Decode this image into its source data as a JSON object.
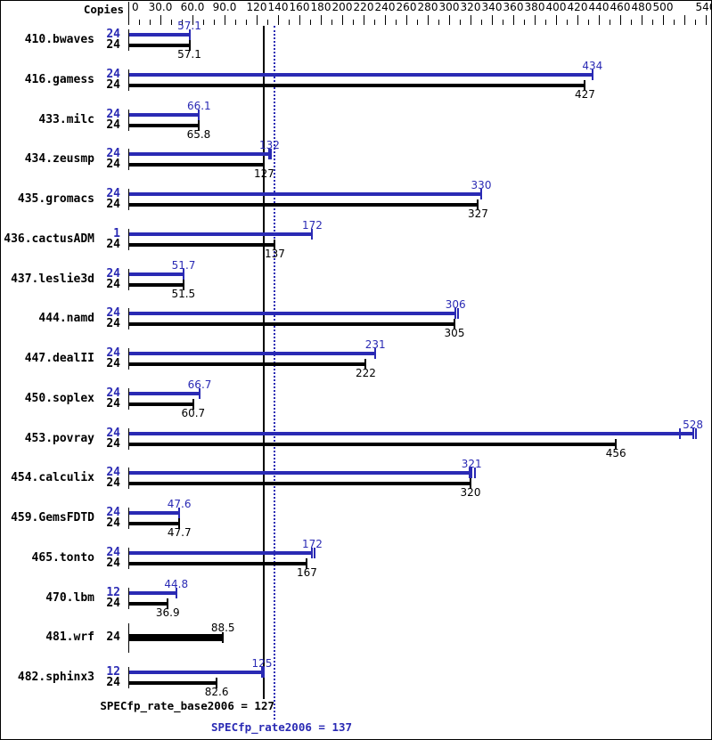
{
  "colors": {
    "peak_blue": "#2a2ab4",
    "base_black": "#000000"
  },
  "chart_data": {
    "type": "bar",
    "orientation": "horizontal",
    "axis": {
      "title": "Copies",
      "min": 0,
      "max": 540,
      "minor_step": 10,
      "labels": [
        {
          "v": 0,
          "t": "0"
        },
        {
          "v": 30,
          "t": "30.0"
        },
        {
          "v": 60,
          "t": "60.0"
        },
        {
          "v": 90,
          "t": "90.0"
        },
        {
          "v": 120,
          "t": "120"
        },
        {
          "v": 140,
          "t": "140"
        },
        {
          "v": 160,
          "t": "160"
        },
        {
          "v": 180,
          "t": "180"
        },
        {
          "v": 200,
          "t": "200"
        },
        {
          "v": 220,
          "t": "220"
        },
        {
          "v": 240,
          "t": "240"
        },
        {
          "v": 260,
          "t": "260"
        },
        {
          "v": 280,
          "t": "280"
        },
        {
          "v": 300,
          "t": "300"
        },
        {
          "v": 320,
          "t": "320"
        },
        {
          "v": 340,
          "t": "340"
        },
        {
          "v": 360,
          "t": "360"
        },
        {
          "v": 380,
          "t": "380"
        },
        {
          "v": 400,
          "t": "400"
        },
        {
          "v": 420,
          "t": "420"
        },
        {
          "v": 440,
          "t": "440"
        },
        {
          "v": 460,
          "t": "460"
        },
        {
          "v": 480,
          "t": "480"
        },
        {
          "v": 500,
          "t": "500"
        },
        {
          "v": 540,
          "t": "540"
        }
      ]
    },
    "reference_lines": [
      {
        "label": "SPECfp_rate_base2006 = 127",
        "value": 127,
        "style": "solid",
        "color": "#000000"
      },
      {
        "label": "SPECfp_rate2006 = 137",
        "value": 137,
        "style": "dotted",
        "color": "#2a2ab4"
      }
    ],
    "benchmarks": [
      {
        "name": "410.bwaves",
        "bars": [
          {
            "series": "peak",
            "copies": "24",
            "value": 57.1,
            "label": "57.1"
          },
          {
            "series": "base",
            "copies": "24",
            "value": 57.1,
            "label": "57.1"
          }
        ]
      },
      {
        "name": "416.gamess",
        "bars": [
          {
            "series": "peak",
            "copies": "24",
            "value": 434,
            "label": "434"
          },
          {
            "series": "base",
            "copies": "24",
            "value": 427,
            "label": "427"
          }
        ]
      },
      {
        "name": "433.milc",
        "bars": [
          {
            "series": "peak",
            "copies": "24",
            "value": 66.1,
            "label": "66.1"
          },
          {
            "series": "base",
            "copies": "24",
            "value": 65.8,
            "label": "65.8"
          }
        ]
      },
      {
        "name": "434.zeusmp",
        "bars": [
          {
            "series": "peak",
            "copies": "24",
            "value": 132,
            "label": "132",
            "run_ticks": [
              133
            ]
          },
          {
            "series": "base",
            "copies": "24",
            "value": 127,
            "label": "127"
          }
        ]
      },
      {
        "name": "435.gromacs",
        "bars": [
          {
            "series": "peak",
            "copies": "24",
            "value": 330,
            "label": "330"
          },
          {
            "series": "base",
            "copies": "24",
            "value": 327,
            "label": "327"
          }
        ]
      },
      {
        "name": "436.cactusADM",
        "bars": [
          {
            "series": "peak",
            "copies": "1",
            "value": 172,
            "label": "172"
          },
          {
            "series": "base",
            "copies": "24",
            "value": 137,
            "label": "137"
          }
        ]
      },
      {
        "name": "437.leslie3d",
        "bars": [
          {
            "series": "peak",
            "copies": "24",
            "value": 51.7,
            "label": "51.7"
          },
          {
            "series": "base",
            "copies": "24",
            "value": 51.5,
            "label": "51.5"
          }
        ]
      },
      {
        "name": "444.namd",
        "bars": [
          {
            "series": "peak",
            "copies": "24",
            "value": 306,
            "label": "306",
            "run_ticks": [
              308
            ]
          },
          {
            "series": "base",
            "copies": "24",
            "value": 305,
            "label": "305"
          }
        ]
      },
      {
        "name": "447.dealII",
        "bars": [
          {
            "series": "peak",
            "copies": "24",
            "value": 231,
            "label": "231"
          },
          {
            "series": "base",
            "copies": "24",
            "value": 222,
            "label": "222"
          }
        ]
      },
      {
        "name": "450.soplex",
        "bars": [
          {
            "series": "peak",
            "copies": "24",
            "value": 66.7,
            "label": "66.7"
          },
          {
            "series": "base",
            "copies": "24",
            "value": 60.7,
            "label": "60.7"
          }
        ]
      },
      {
        "name": "453.povray",
        "bars": [
          {
            "series": "peak",
            "copies": "24",
            "value": 528,
            "label": "528",
            "run_ticks": [
              516,
              531
            ]
          },
          {
            "series": "base",
            "copies": "24",
            "value": 456,
            "label": "456"
          }
        ]
      },
      {
        "name": "454.calculix",
        "bars": [
          {
            "series": "peak",
            "copies": "24",
            "value": 321,
            "label": "321",
            "run_ticks": [
              319,
              324
            ]
          },
          {
            "series": "base",
            "copies": "24",
            "value": 320,
            "label": "320"
          }
        ]
      },
      {
        "name": "459.GemsFDTD",
        "bars": [
          {
            "series": "peak",
            "copies": "24",
            "value": 47.6,
            "label": "47.6"
          },
          {
            "series": "base",
            "copies": "24",
            "value": 47.7,
            "label": "47.7"
          }
        ]
      },
      {
        "name": "465.tonto",
        "bars": [
          {
            "series": "peak",
            "copies": "24",
            "value": 172,
            "label": "172",
            "run_ticks": [
              174
            ]
          },
          {
            "series": "base",
            "copies": "24",
            "value": 167,
            "label": "167"
          }
        ]
      },
      {
        "name": "470.lbm",
        "bars": [
          {
            "series": "peak",
            "copies": "12",
            "value": 44.8,
            "label": "44.8"
          },
          {
            "series": "base",
            "copies": "24",
            "value": 36.9,
            "label": "36.9"
          }
        ]
      },
      {
        "name": "481.wrf",
        "bars": [
          {
            "series": "both",
            "copies": "24",
            "value": 88.5,
            "label": "88.5"
          }
        ]
      },
      {
        "name": "482.sphinx3",
        "bars": [
          {
            "series": "peak",
            "copies": "12",
            "value": 125,
            "label": "125",
            "run_ticks": [
              127
            ]
          },
          {
            "series": "base",
            "copies": "24",
            "value": 82.6,
            "label": "82.6"
          }
        ]
      }
    ]
  }
}
